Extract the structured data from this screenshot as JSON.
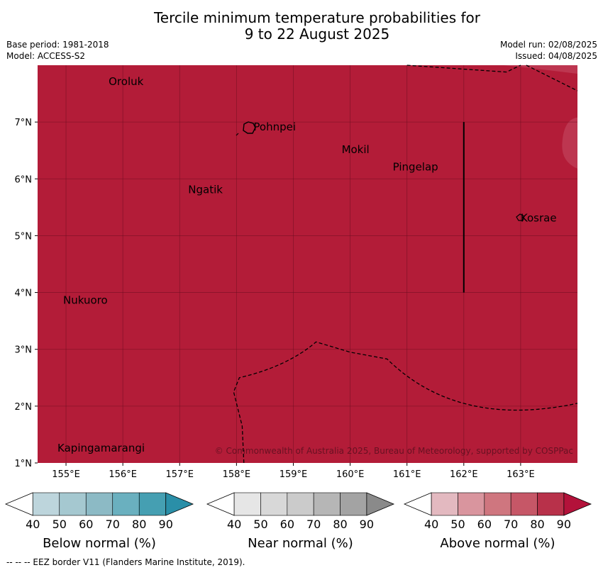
{
  "title_line1": "Tercile minimum temperature probabilities for",
  "title_line2": "9 to 22 August 2025",
  "meta": {
    "base_period": "Base period: 1981-2018",
    "model": "Model: ACCESS-S2",
    "model_run": "Model run: 02/08/2025",
    "issued": "Issued: 04/08/2025"
  },
  "map": {
    "lon_range": [
      154.5,
      164.0
    ],
    "lat_range": [
      1.0,
      8.0
    ],
    "lon_ticks": [
      {
        "v": 155,
        "label": "155°E"
      },
      {
        "v": 156,
        "label": "156°E"
      },
      {
        "v": 157,
        "label": "157°E"
      },
      {
        "v": 158,
        "label": "158°E"
      },
      {
        "v": 159,
        "label": "159°E"
      },
      {
        "v": 160,
        "label": "160°E"
      },
      {
        "v": 161,
        "label": "161°E"
      },
      {
        "v": 162,
        "label": "162°E"
      },
      {
        "v": 163,
        "label": "163°E"
      }
    ],
    "lat_ticks": [
      {
        "v": 1,
        "label": "1°N"
      },
      {
        "v": 2,
        "label": "2°N"
      },
      {
        "v": 3,
        "label": "3°N"
      },
      {
        "v": 4,
        "label": "4°N"
      },
      {
        "v": 5,
        "label": "5°N"
      },
      {
        "v": 6,
        "label": "6°N"
      },
      {
        "v": 7,
        "label": "7°N"
      }
    ],
    "fill_color": "#b31c38",
    "places": [
      {
        "name": "Oroluk",
        "lon": 155.75,
        "lat": 7.65
      },
      {
        "name": "Pohnpei",
        "lon": 158.3,
        "lat": 6.85
      },
      {
        "name": "Mokil",
        "lon": 159.85,
        "lat": 6.45
      },
      {
        "name": "Pingelap",
        "lon": 160.75,
        "lat": 6.15
      },
      {
        "name": "Ngatik",
        "lon": 157.15,
        "lat": 5.75
      },
      {
        "name": "Kosrae",
        "lon": 163.0,
        "lat": 5.25
      },
      {
        "name": "Nukuoro",
        "lon": 154.95,
        "lat": 3.8
      },
      {
        "name": "Kapingamarangi",
        "lon": 154.85,
        "lat": 1.2
      }
    ],
    "copyright": "© Commonwealth of Australia 2025, Bureau of Meteorology, supported by COSPPac"
  },
  "colorbars": [
    {
      "title": "Below normal (%)",
      "colors": [
        "#ffffff",
        "#bdd5dc",
        "#a5c8d0",
        "#8cbac5",
        "#6ab0bf",
        "#459fb2",
        "#2a8fa8"
      ]
    },
    {
      "title": "Near normal (%)",
      "colors": [
        "#ffffff",
        "#e6e6e6",
        "#d8d8d8",
        "#cbcbcb",
        "#b6b6b6",
        "#a3a3a3",
        "#8a8a8a"
      ]
    },
    {
      "title": "Above normal (%)",
      "colors": [
        "#ffffff",
        "#e3b9c0",
        "#d9959e",
        "#cf767f",
        "#c65767",
        "#b8314a",
        "#b3123a"
      ]
    }
  ],
  "colorbar_ticks": [
    "40",
    "50",
    "60",
    "70",
    "80",
    "90"
  ],
  "footer": "--  --  -- EEZ border V11 (Flanders Marine Institute, 2019)."
}
